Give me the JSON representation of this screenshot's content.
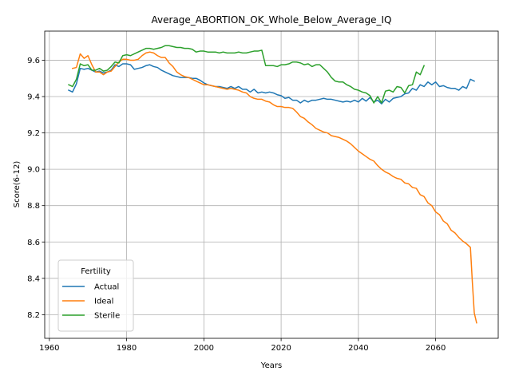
{
  "chart_data": {
    "type": "line",
    "title": "Average_ABORTION_OK_Whole_Below_Average_IQ",
    "xlabel": "Years",
    "ylabel": "Score(6-12)",
    "xlim": [
      1958.8,
      2076.2
    ],
    "ylim": [
      8.07,
      9.76
    ],
    "xticks": [
      1960,
      1980,
      2000,
      2020,
      2040,
      2060
    ],
    "yticks": [
      8.2,
      8.4,
      8.6,
      8.8,
      9.0,
      9.2,
      9.4,
      9.6
    ],
    "grid": true,
    "legend": {
      "title": "Fertility",
      "position": "lower-left"
    },
    "series": [
      {
        "name": "Actual",
        "color": "#1f77b4",
        "points": [
          [
            1965,
            9.435
          ],
          [
            1966,
            9.425
          ],
          [
            1967,
            9.47
          ],
          [
            1968,
            9.555
          ],
          [
            1969,
            9.55
          ],
          [
            1970,
            9.555
          ],
          [
            1971,
            9.545
          ],
          [
            1972,
            9.535
          ],
          [
            1973,
            9.54
          ],
          [
            1974,
            9.53
          ],
          [
            1975,
            9.535
          ],
          [
            1976,
            9.545
          ],
          [
            1977,
            9.575
          ],
          [
            1978,
            9.565
          ],
          [
            1979,
            9.58
          ],
          [
            1980,
            9.58
          ],
          [
            1981,
            9.575
          ],
          [
            1982,
            9.55
          ],
          [
            1983,
            9.555
          ],
          [
            1984,
            9.56
          ],
          [
            1985,
            9.57
          ],
          [
            1986,
            9.575
          ],
          [
            1987,
            9.565
          ],
          [
            1988,
            9.56
          ],
          [
            1989,
            9.545
          ],
          [
            1990,
            9.535
          ],
          [
            1991,
            9.525
          ],
          [
            1992,
            9.515
          ],
          [
            1993,
            9.51
          ],
          [
            1994,
            9.505
          ],
          [
            1995,
            9.505
          ],
          [
            1996,
            9.505
          ],
          [
            1997,
            9.5
          ],
          [
            1998,
            9.5
          ],
          [
            1999,
            9.49
          ],
          [
            2000,
            9.475
          ],
          [
            2001,
            9.465
          ],
          [
            2002,
            9.46
          ],
          [
            2003,
            9.455
          ],
          [
            2004,
            9.455
          ],
          [
            2005,
            9.45
          ],
          [
            2006,
            9.445
          ],
          [
            2007,
            9.455
          ],
          [
            2008,
            9.445
          ],
          [
            2009,
            9.455
          ],
          [
            2010,
            9.44
          ],
          [
            2011,
            9.44
          ],
          [
            2012,
            9.425
          ],
          [
            2013,
            9.44
          ],
          [
            2014,
            9.42
          ],
          [
            2015,
            9.425
          ],
          [
            2016,
            9.42
          ],
          [
            2017,
            9.425
          ],
          [
            2018,
            9.42
          ],
          [
            2019,
            9.41
          ],
          [
            2020,
            9.405
          ],
          [
            2021,
            9.39
          ],
          [
            2022,
            9.395
          ],
          [
            2023,
            9.38
          ],
          [
            2024,
            9.38
          ],
          [
            2025,
            9.365
          ],
          [
            2026,
            9.38
          ],
          [
            2027,
            9.37
          ],
          [
            2028,
            9.38
          ],
          [
            2029,
            9.38
          ],
          [
            2030,
            9.385
          ],
          [
            2031,
            9.39
          ],
          [
            2032,
            9.385
          ],
          [
            2033,
            9.385
          ],
          [
            2034,
            9.38
          ],
          [
            2035,
            9.375
          ],
          [
            2036,
            9.37
          ],
          [
            2037,
            9.375
          ],
          [
            2038,
            9.37
          ],
          [
            2039,
            9.38
          ],
          [
            2040,
            9.37
          ],
          [
            2041,
            9.39
          ],
          [
            2042,
            9.375
          ],
          [
            2043,
            9.395
          ],
          [
            2044,
            9.37
          ],
          [
            2045,
            9.38
          ],
          [
            2046,
            9.36
          ],
          [
            2047,
            9.385
          ],
          [
            2048,
            9.37
          ],
          [
            2049,
            9.39
          ],
          [
            2050,
            9.395
          ],
          [
            2051,
            9.4
          ],
          [
            2052,
            9.415
          ],
          [
            2053,
            9.42
          ],
          [
            2054,
            9.445
          ],
          [
            2055,
            9.435
          ],
          [
            2056,
            9.465
          ],
          [
            2057,
            9.455
          ],
          [
            2058,
            9.48
          ],
          [
            2059,
            9.465
          ],
          [
            2060,
            9.48
          ],
          [
            2061,
            9.455
          ],
          [
            2062,
            9.46
          ],
          [
            2063,
            9.45
          ],
          [
            2064,
            9.445
          ],
          [
            2065,
            9.445
          ],
          [
            2066,
            9.435
          ],
          [
            2067,
            9.455
          ],
          [
            2068,
            9.445
          ],
          [
            2069,
            9.495
          ],
          [
            2070,
            9.485
          ]
        ]
      },
      {
        "name": "Ideal",
        "color": "#ff7f0e",
        "points": [
          [
            1966,
            9.555
          ],
          [
            1967,
            9.56
          ],
          [
            1968,
            9.635
          ],
          [
            1969,
            9.61
          ],
          [
            1970,
            9.625
          ],
          [
            1971,
            9.575
          ],
          [
            1972,
            9.535
          ],
          [
            1973,
            9.535
          ],
          [
            1974,
            9.52
          ],
          [
            1975,
            9.535
          ],
          [
            1976,
            9.54
          ],
          [
            1977,
            9.565
          ],
          [
            1978,
            9.59
          ],
          [
            1979,
            9.605
          ],
          [
            1980,
            9.605
          ],
          [
            1981,
            9.6
          ],
          [
            1982,
            9.6
          ],
          [
            1983,
            9.605
          ],
          [
            1984,
            9.625
          ],
          [
            1985,
            9.64
          ],
          [
            1986,
            9.645
          ],
          [
            1987,
            9.64
          ],
          [
            1988,
            9.625
          ],
          [
            1989,
            9.615
          ],
          [
            1990,
            9.615
          ],
          [
            1991,
            9.585
          ],
          [
            1992,
            9.565
          ],
          [
            1993,
            9.535
          ],
          [
            1994,
            9.52
          ],
          [
            1995,
            9.51
          ],
          [
            1996,
            9.505
          ],
          [
            1997,
            9.495
          ],
          [
            1998,
            9.485
          ],
          [
            1999,
            9.475
          ],
          [
            2000,
            9.465
          ],
          [
            2001,
            9.465
          ],
          [
            2002,
            9.46
          ],
          [
            2003,
            9.455
          ],
          [
            2004,
            9.45
          ],
          [
            2005,
            9.445
          ],
          [
            2006,
            9.44
          ],
          [
            2007,
            9.445
          ],
          [
            2008,
            9.44
          ],
          [
            2009,
            9.435
          ],
          [
            2010,
            9.425
          ],
          [
            2011,
            9.42
          ],
          [
            2012,
            9.4
          ],
          [
            2013,
            9.39
          ],
          [
            2014,
            9.385
          ],
          [
            2015,
            9.385
          ],
          [
            2016,
            9.375
          ],
          [
            2017,
            9.37
          ],
          [
            2018,
            9.355
          ],
          [
            2019,
            9.345
          ],
          [
            2020,
            9.345
          ],
          [
            2021,
            9.34
          ],
          [
            2022,
            9.34
          ],
          [
            2023,
            9.335
          ],
          [
            2024,
            9.315
          ],
          [
            2025,
            9.29
          ],
          [
            2026,
            9.28
          ],
          [
            2027,
            9.26
          ],
          [
            2028,
            9.245
          ],
          [
            2029,
            9.225
          ],
          [
            2030,
            9.215
          ],
          [
            2031,
            9.205
          ],
          [
            2032,
            9.2
          ],
          [
            2033,
            9.185
          ],
          [
            2034,
            9.18
          ],
          [
            2035,
            9.175
          ],
          [
            2036,
            9.165
          ],
          [
            2037,
            9.155
          ],
          [
            2038,
            9.14
          ],
          [
            2039,
            9.12
          ],
          [
            2040,
            9.1
          ],
          [
            2041,
            9.085
          ],
          [
            2042,
            9.07
          ],
          [
            2043,
            9.055
          ],
          [
            2044,
            9.045
          ],
          [
            2045,
            9.02
          ],
          [
            2046,
            9.0
          ],
          [
            2047,
            8.985
          ],
          [
            2048,
            8.975
          ],
          [
            2049,
            8.96
          ],
          [
            2050,
            8.95
          ],
          [
            2051,
            8.945
          ],
          [
            2052,
            8.925
          ],
          [
            2053,
            8.92
          ],
          [
            2054,
            8.9
          ],
          [
            2055,
            8.895
          ],
          [
            2056,
            8.86
          ],
          [
            2057,
            8.85
          ],
          [
            2058,
            8.815
          ],
          [
            2059,
            8.8
          ],
          [
            2060,
            8.765
          ],
          [
            2061,
            8.75
          ],
          [
            2062,
            8.715
          ],
          [
            2063,
            8.7
          ],
          [
            2064,
            8.665
          ],
          [
            2065,
            8.65
          ],
          [
            2066,
            8.625
          ],
          [
            2067,
            8.605
          ],
          [
            2068,
            8.59
          ],
          [
            2069,
            8.57
          ],
          [
            2069.5,
            8.38
          ],
          [
            2070,
            8.21
          ],
          [
            2070.6,
            8.155
          ]
        ]
      },
      {
        "name": "Sterile",
        "color": "#2ca02c",
        "points": [
          [
            1965,
            9.465
          ],
          [
            1966,
            9.455
          ],
          [
            1967,
            9.495
          ],
          [
            1968,
            9.58
          ],
          [
            1969,
            9.57
          ],
          [
            1970,
            9.575
          ],
          [
            1971,
            9.545
          ],
          [
            1972,
            9.545
          ],
          [
            1973,
            9.555
          ],
          [
            1974,
            9.54
          ],
          [
            1975,
            9.545
          ],
          [
            1976,
            9.565
          ],
          [
            1977,
            9.59
          ],
          [
            1978,
            9.585
          ],
          [
            1979,
            9.625
          ],
          [
            1980,
            9.63
          ],
          [
            1981,
            9.625
          ],
          [
            1982,
            9.635
          ],
          [
            1983,
            9.645
          ],
          [
            1984,
            9.655
          ],
          [
            1985,
            9.665
          ],
          [
            1986,
            9.665
          ],
          [
            1987,
            9.66
          ],
          [
            1988,
            9.665
          ],
          [
            1989,
            9.67
          ],
          [
            1990,
            9.68
          ],
          [
            1991,
            9.68
          ],
          [
            1992,
            9.675
          ],
          [
            1993,
            9.67
          ],
          [
            1994,
            9.67
          ],
          [
            1995,
            9.665
          ],
          [
            1996,
            9.665
          ],
          [
            1997,
            9.66
          ],
          [
            1998,
            9.645
          ],
          [
            1999,
            9.65
          ],
          [
            2000,
            9.65
          ],
          [
            2001,
            9.645
          ],
          [
            2002,
            9.645
          ],
          [
            2003,
            9.645
          ],
          [
            2004,
            9.64
          ],
          [
            2005,
            9.645
          ],
          [
            2006,
            9.64
          ],
          [
            2007,
            9.64
          ],
          [
            2008,
            9.64
          ],
          [
            2009,
            9.645
          ],
          [
            2010,
            9.64
          ],
          [
            2011,
            9.64
          ],
          [
            2012,
            9.645
          ],
          [
            2013,
            9.65
          ],
          [
            2014,
            9.65
          ],
          [
            2015,
            9.655
          ],
          [
            2016,
            9.57
          ],
          [
            2017,
            9.57
          ],
          [
            2018,
            9.57
          ],
          [
            2019,
            9.565
          ],
          [
            2020,
            9.575
          ],
          [
            2021,
            9.575
          ],
          [
            2022,
            9.58
          ],
          [
            2023,
            9.59
          ],
          [
            2024,
            9.59
          ],
          [
            2025,
            9.585
          ],
          [
            2026,
            9.575
          ],
          [
            2027,
            9.58
          ],
          [
            2028,
            9.565
          ],
          [
            2029,
            9.575
          ],
          [
            2030,
            9.575
          ],
          [
            2031,
            9.555
          ],
          [
            2032,
            9.535
          ],
          [
            2033,
            9.505
          ],
          [
            2034,
            9.485
          ],
          [
            2035,
            9.48
          ],
          [
            2036,
            9.48
          ],
          [
            2037,
            9.465
          ],
          [
            2038,
            9.455
          ],
          [
            2039,
            9.44
          ],
          [
            2040,
            9.435
          ],
          [
            2041,
            9.425
          ],
          [
            2042,
            9.42
          ],
          [
            2043,
            9.405
          ],
          [
            2044,
            9.365
          ],
          [
            2045,
            9.4
          ],
          [
            2046,
            9.365
          ],
          [
            2047,
            9.43
          ],
          [
            2048,
            9.435
          ],
          [
            2049,
            9.425
          ],
          [
            2050,
            9.455
          ],
          [
            2051,
            9.45
          ],
          [
            2052,
            9.42
          ],
          [
            2053,
            9.46
          ],
          [
            2054,
            9.465
          ],
          [
            2055,
            9.535
          ],
          [
            2056,
            9.52
          ],
          [
            2057,
            9.57
          ]
        ]
      }
    ]
  }
}
